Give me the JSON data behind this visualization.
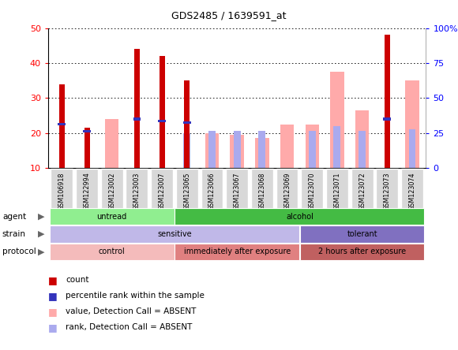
{
  "title": "GDS2485 / 1639591_at",
  "samples": [
    "GSM106918",
    "GSM122994",
    "GSM123002",
    "GSM123003",
    "GSM123007",
    "GSM123065",
    "GSM123066",
    "GSM123067",
    "GSM123068",
    "GSM123069",
    "GSM123070",
    "GSM123071",
    "GSM123072",
    "GSM123073",
    "GSM123074"
  ],
  "count_values": [
    34,
    21.5,
    null,
    44,
    42,
    35,
    null,
    null,
    null,
    null,
    null,
    null,
    null,
    48,
    null
  ],
  "value_absent": [
    null,
    null,
    24,
    null,
    null,
    null,
    20,
    19.5,
    18.5,
    22.5,
    22.5,
    37.5,
    26.5,
    null,
    35
  ],
  "rank_absent": [
    null,
    null,
    null,
    null,
    null,
    20,
    20.5,
    20.5,
    20.5,
    null,
    20.5,
    22,
    20.5,
    null,
    21
  ],
  "percentile_rank": [
    22.5,
    20.5,
    null,
    24,
    23.5,
    23,
    null,
    null,
    null,
    null,
    null,
    null,
    null,
    24,
    null
  ],
  "left_ylim": [
    10,
    50
  ],
  "left_yticks": [
    10,
    20,
    30,
    40,
    50
  ],
  "right_yticklabels": [
    "0",
    "25",
    "50",
    "75",
    "100%"
  ],
  "agent_groups": [
    {
      "label": "untread",
      "start": 0,
      "end": 5,
      "color": "#90EE90"
    },
    {
      "label": "alcohol",
      "start": 5,
      "end": 15,
      "color": "#44BB44"
    }
  ],
  "strain_groups": [
    {
      "label": "sensitive",
      "start": 0,
      "end": 10,
      "color": "#C0B8E8"
    },
    {
      "label": "tolerant",
      "start": 10,
      "end": 15,
      "color": "#8070C0"
    }
  ],
  "protocol_groups": [
    {
      "label": "control",
      "start": 0,
      "end": 5,
      "color": "#F4BBBB"
    },
    {
      "label": "immediately after exposure",
      "start": 5,
      "end": 10,
      "color": "#E08080"
    },
    {
      "label": "2 hours after exposure",
      "start": 10,
      "end": 15,
      "color": "#C06060"
    }
  ],
  "bar_color_red": "#CC0000",
  "bar_color_pink": "#FFAAAA",
  "bar_color_blue": "#3333BB",
  "bar_color_lightblue": "#AAAAEE",
  "legend_items": [
    {
      "color": "#CC0000",
      "label": "count"
    },
    {
      "color": "#3333BB",
      "label": "percentile rank within the sample"
    },
    {
      "color": "#FFAAAA",
      "label": "value, Detection Call = ABSENT"
    },
    {
      "color": "#AAAAEE",
      "label": "rank, Detection Call = ABSENT"
    }
  ]
}
